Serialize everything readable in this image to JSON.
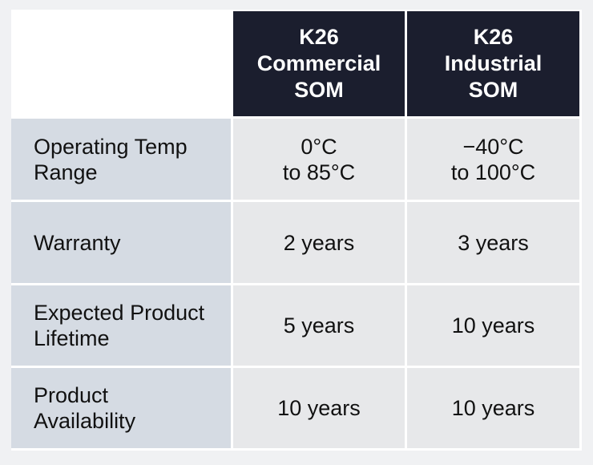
{
  "columns": [
    {
      "lines": [
        "K26",
        "Commercial",
        "SOM"
      ]
    },
    {
      "lines": [
        "K26",
        "Industrial",
        "SOM"
      ]
    }
  ],
  "rows": [
    {
      "label_lines": [
        "Operating Temp",
        "Range"
      ],
      "values": [
        [
          "0°C",
          "to 85°C"
        ],
        [
          "−40°C",
          "to 100°C"
        ]
      ]
    },
    {
      "label_lines": [
        "Warranty"
      ],
      "values": [
        [
          "2 years"
        ],
        [
          "3 years"
        ]
      ]
    },
    {
      "label_lines": [
        "Expected Product",
        "Lifetime"
      ],
      "values": [
        [
          "5 years"
        ],
        [
          "10 years"
        ]
      ]
    },
    {
      "label_lines": [
        "Product",
        "Availability"
      ],
      "values": [
        [
          "10 years"
        ],
        [
          "10 years"
        ]
      ]
    }
  ]
}
